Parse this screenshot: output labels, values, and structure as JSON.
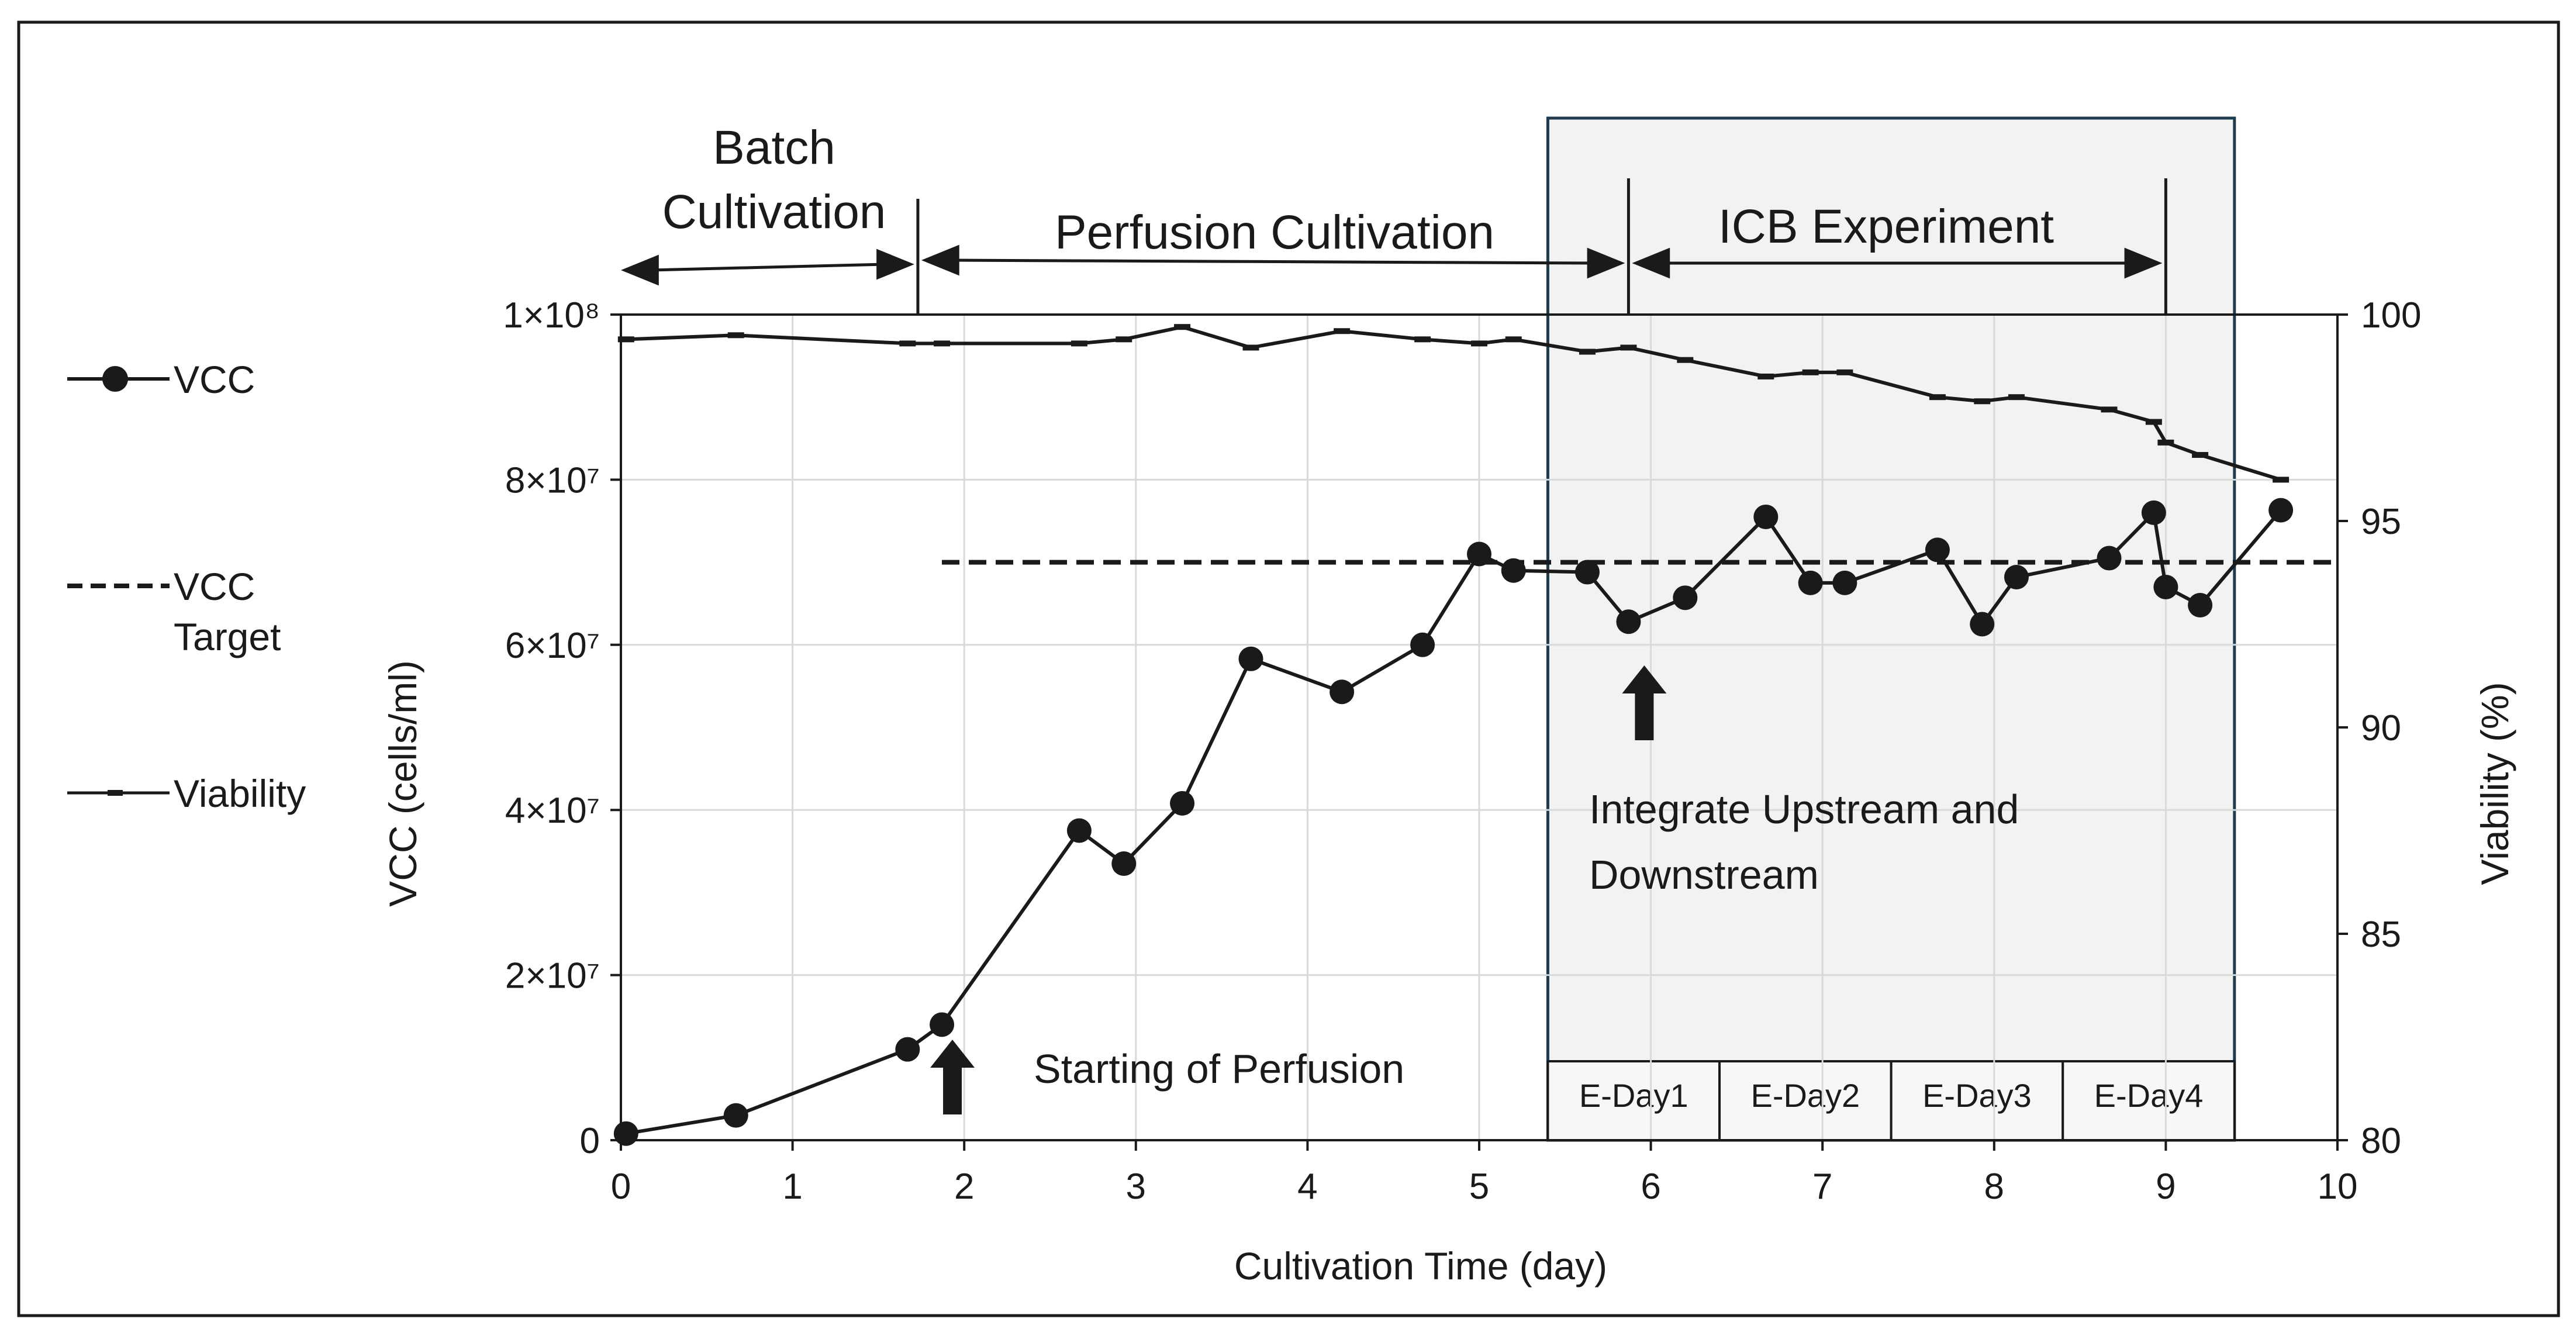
{
  "chart_data": {
    "type": "line",
    "xlabel": "Cultivation Time (day)",
    "ylabel": "VCC (cells/ml)",
    "y2label": "Viability (%)",
    "xlim": [
      0,
      10
    ],
    "ylim": [
      0,
      100000000
    ],
    "y2lim": [
      80,
      100
    ],
    "x_ticks": [
      "0",
      "1",
      "2",
      "3",
      "4",
      "5",
      "6",
      "7",
      "8",
      "9",
      "10"
    ],
    "y_tick_labels": [
      {
        "value": 0,
        "label": "0"
      },
      {
        "value": 20000000,
        "label": "2×10⁷"
      },
      {
        "value": 40000000,
        "label": "4×10⁷"
      },
      {
        "value": 60000000,
        "label": "6×10⁷"
      },
      {
        "value": 80000000,
        "label": "8×10⁷"
      },
      {
        "value": 100000000,
        "label": "1×10⁸"
      }
    ],
    "y2_ticks": [
      "80",
      "85",
      "90",
      "95",
      "100"
    ],
    "grid": true,
    "series": [
      {
        "name": "VCC",
        "marker": "circle",
        "x": [
          0.03,
          0.67,
          1.67,
          1.87,
          2.67,
          2.93,
          3.27,
          3.67,
          4.2,
          4.67,
          5.0,
          5.2,
          5.63,
          5.87,
          6.2,
          6.67,
          6.93,
          7.13,
          7.67,
          7.93,
          8.13,
          8.67,
          8.93,
          9.0,
          9.2,
          9.67
        ],
        "values": [
          800000,
          3000000,
          11000000,
          14000000,
          37500000,
          33500000,
          40800000,
          58300000,
          54300000,
          60000000,
          71000000,
          69000000,
          68800000,
          62800000,
          65700000,
          75500000,
          67500000,
          67500000,
          71500000,
          62500000,
          68200000,
          70500000,
          76000000,
          67000000,
          64800000,
          76300000
        ]
      },
      {
        "name": "VCC Target",
        "style": "dashed",
        "x": [
          1.87,
          10.0
        ],
        "values": [
          70000000,
          70000000
        ]
      },
      {
        "name": "Viability",
        "axis": "right",
        "marker": "dash",
        "x": [
          0.03,
          0.67,
          1.67,
          1.87,
          2.67,
          2.93,
          3.27,
          3.67,
          4.2,
          4.67,
          5.0,
          5.2,
          5.63,
          5.87,
          6.2,
          6.67,
          6.93,
          7.13,
          7.67,
          7.93,
          8.13,
          8.67,
          8.93,
          9.0,
          9.2,
          9.67
        ],
        "values": [
          99.4,
          99.5,
          99.3,
          99.3,
          99.3,
          99.4,
          99.7,
          99.2,
          99.6,
          99.4,
          99.3,
          99.4,
          99.1,
          99.2,
          98.9,
          98.5,
          98.6,
          98.6,
          98.0,
          97.9,
          98.0,
          97.7,
          97.4,
          96.9,
          96.6,
          96.0
        ]
      }
    ],
    "phases": [
      {
        "label_lines": [
          "Batch",
          "Cultivation"
        ],
        "x_start": 0.0,
        "x_end": 1.73
      },
      {
        "label_lines": [
          "Perfusion Cultivation"
        ],
        "x_start": 1.73,
        "x_end": 5.87
      },
      {
        "label_lines": [
          "ICB Experiment"
        ],
        "x_start": 5.87,
        "x_end": 9.0
      }
    ],
    "icb_box": {
      "x_start": 5.4,
      "x_end": 9.4,
      "fill": "#f2f2f2",
      "border": "#1f3b4d"
    },
    "experiment_days": [
      {
        "label": "E-Day1",
        "x_start": 5.4,
        "x_end": 6.4
      },
      {
        "label": "E-Day2",
        "x_start": 6.4,
        "x_end": 7.4
      },
      {
        "label": "E-Day3",
        "x_start": 7.4,
        "x_end": 8.4
      },
      {
        "label": "E-Day4",
        "x_start": 8.4,
        "x_end": 9.4
      }
    ],
    "annotations": [
      {
        "lines": [
          "Starting of Perfusion"
        ],
        "arrow_x": 1.87
      },
      {
        "lines": [
          "Integrate Upstream and",
          "Downstream"
        ],
        "arrow_x": 5.87
      }
    ],
    "legend": {
      "placement": "left",
      "items": [
        {
          "lines": [
            "VCC"
          ],
          "marker": "circle"
        },
        {
          "lines": [
            "VCC",
            "Target"
          ],
          "marker": "dashed"
        },
        {
          "lines": [
            "Viability"
          ],
          "marker": "dash"
        }
      ]
    },
    "colors": {
      "line": "#1a1a1a",
      "grid": "#d9d9d9",
      "frame": "#1a1a1a",
      "shade": "#f2f2f2",
      "box_border": "#1f3b4d"
    }
  }
}
